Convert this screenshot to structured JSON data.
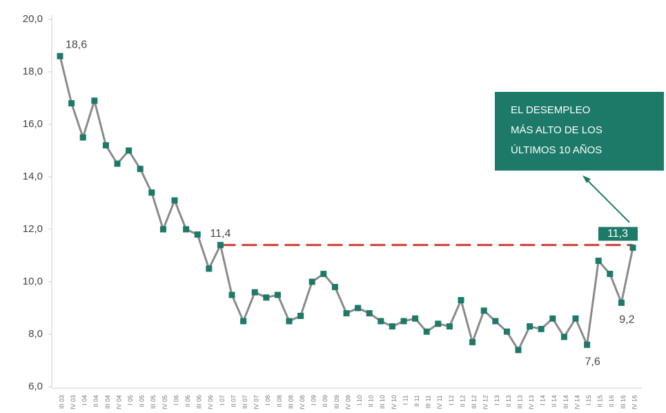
{
  "chart_data": {
    "type": "line",
    "categories": [
      "III 03",
      "IV 03",
      "I 04",
      "II 04",
      "III 04",
      "IV 04",
      "I 05",
      "II 05",
      "III 05",
      "IV 05",
      "I 06",
      "II 06",
      "III 06",
      "IV 06",
      "I 07",
      "II 07",
      "III 07",
      "IV 07",
      "I 08",
      "II 08",
      "III 08",
      "IV 08",
      "I 09",
      "II 09",
      "III 09",
      "IV 09",
      "I 10",
      "II 10",
      "III 10",
      "IV 10",
      "I 11",
      "II 11",
      "III 11",
      "IV 11",
      "I 12",
      "II 12",
      "III 12",
      "IV 12",
      "I 13",
      "II 13",
      "III 13",
      "IV 13",
      "I 14",
      "II 14",
      "III 14",
      "IV 14",
      "I 15",
      "II 15",
      "II 16",
      "III 16",
      "IV 16"
    ],
    "series": [
      {
        "line_color": "#8a8a8a",
        "color": "#1d7a68",
        "values": [
          18.6,
          16.8,
          15.5,
          16.9,
          15.2,
          14.5,
          15.0,
          14.3,
          13.4,
          12.0,
          13.1,
          12.0,
          11.8,
          10.5,
          11.4,
          9.5,
          8.5,
          9.6,
          9.4,
          9.5,
          8.5,
          8.7,
          10.0,
          10.3,
          9.8,
          8.8,
          9.0,
          8.8,
          8.5,
          8.3,
          8.5,
          8.6,
          8.1,
          8.4,
          8.3,
          9.3,
          7.7,
          8.9,
          8.5,
          8.1,
          7.4,
          8.3,
          8.2,
          8.6,
          7.9,
          8.6,
          7.6,
          10.8,
          10.3,
          9.2,
          11.3
        ],
        "value_labels": [
          "18,6",
          null,
          null,
          null,
          null,
          null,
          null,
          null,
          null,
          null,
          null,
          null,
          null,
          null,
          "11,4",
          null,
          null,
          null,
          null,
          null,
          null,
          null,
          null,
          null,
          null,
          null,
          null,
          null,
          null,
          null,
          null,
          null,
          null,
          null,
          null,
          null,
          null,
          null,
          null,
          null,
          null,
          null,
          null,
          null,
          null,
          null,
          "7,6",
          null,
          null,
          "9,2",
          "11,3"
        ]
      }
    ],
    "ylim": [
      6,
      20
    ],
    "yticks": [
      {
        "value": 6,
        "label": "6,0"
      },
      {
        "value": 8,
        "label": "8,0"
      },
      {
        "value": 10,
        "label": "10,0"
      },
      {
        "value": 12,
        "label": "12,0"
      },
      {
        "value": 14,
        "label": "14,0"
      },
      {
        "value": 16,
        "label": "16,0"
      },
      {
        "value": 18,
        "label": "18,0"
      },
      {
        "value": 20,
        "label": "20,0"
      }
    ],
    "reference_line": {
      "value": 11.4,
      "color": "#d03a30"
    },
    "callout": [
      "EL DESEMPLEO",
      "MÁS ALTO DE LOS",
      "ÚLTIMOS 10 AÑOS"
    ],
    "callout_color": "#1d7a68"
  }
}
